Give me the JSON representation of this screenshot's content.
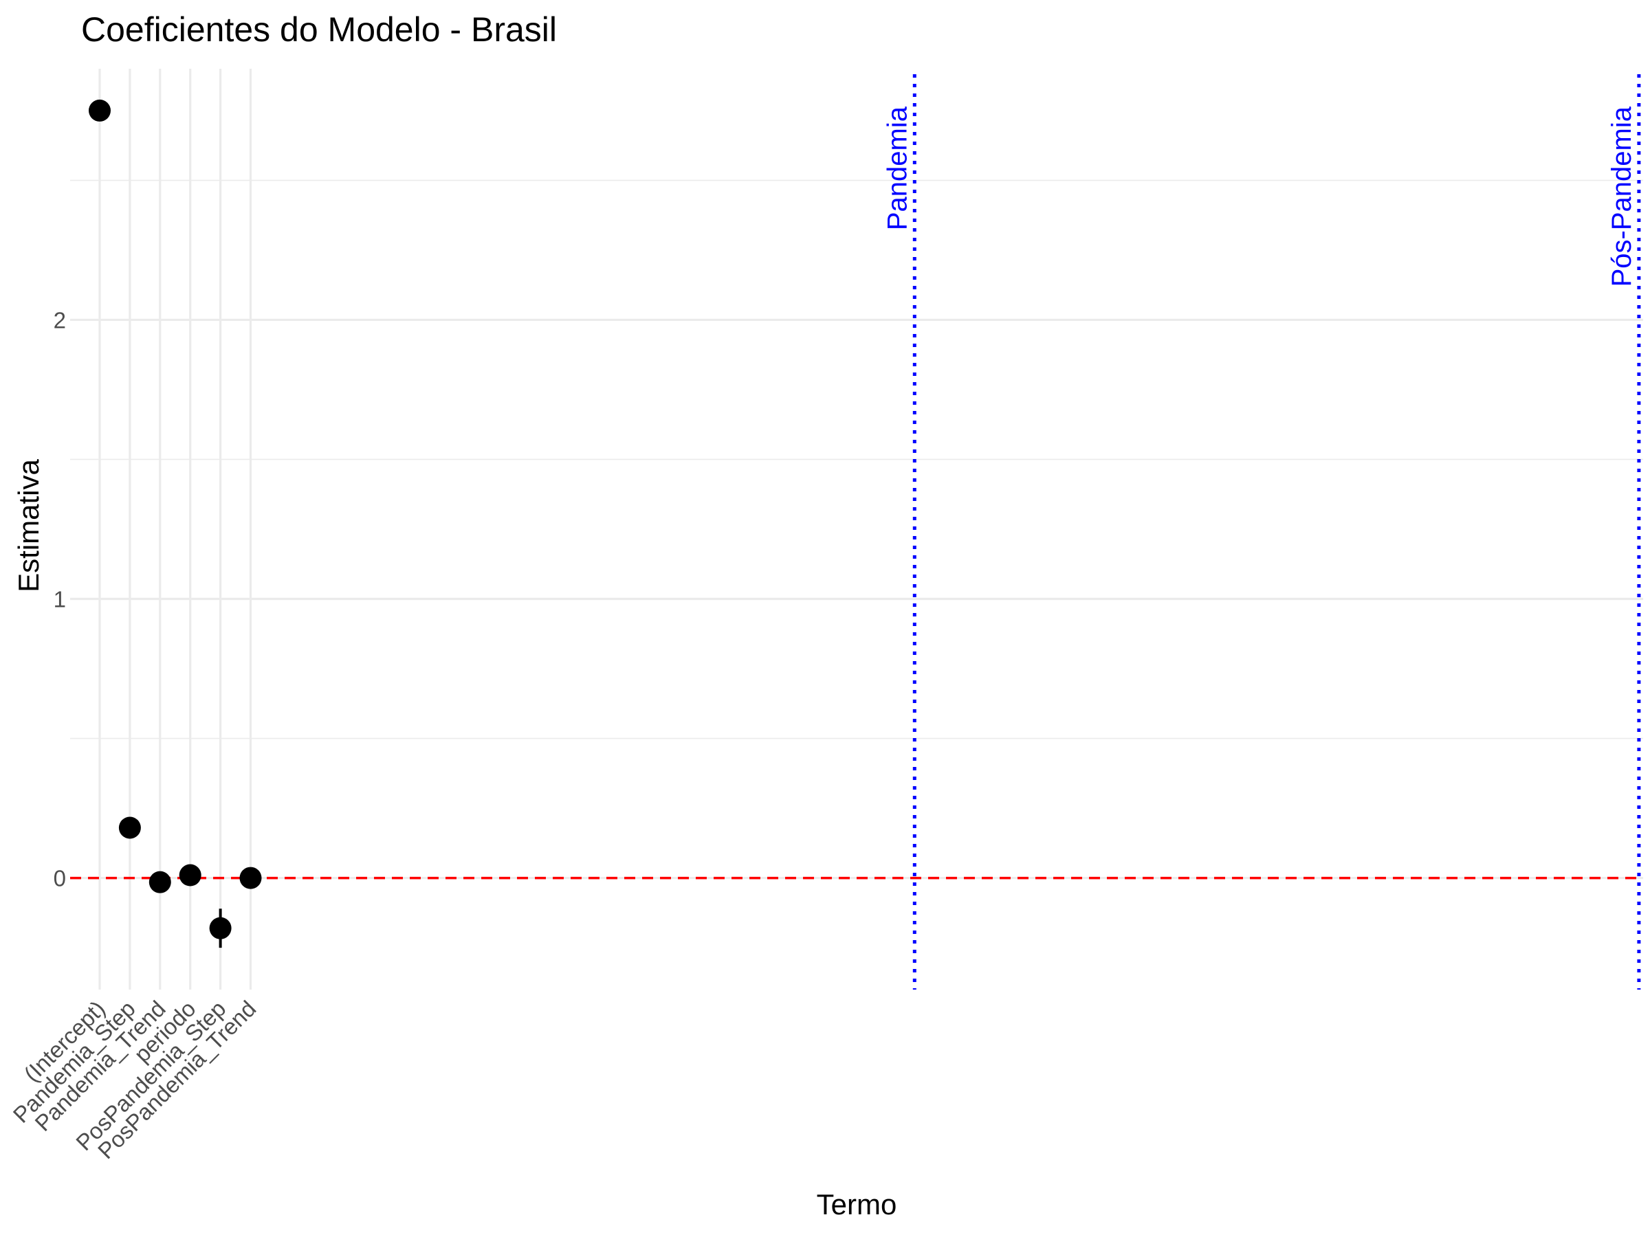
{
  "chart_data": {
    "type": "scatter",
    "title": "Coeficientes do Modelo - Brasil",
    "xlabel": "Termo",
    "ylabel": "Estimativa",
    "categories": [
      "(Intercept)",
      "Pandemia_Step",
      "Pandemia_Trend",
      "periodo",
      "PosPandemia_Step",
      "PosPandemia_Trend"
    ],
    "series": [
      {
        "values": [
          2.75,
          0.18,
          -0.015,
          0.01,
          -0.18,
          0.0
        ],
        "lower": [
          2.74,
          0.17,
          -0.03,
          0.0,
          -0.25,
          -0.01
        ],
        "upper": [
          2.76,
          0.19,
          0.0,
          0.02,
          -0.11,
          0.01
        ]
      }
    ],
    "ylim": [
      -0.4,
      2.9
    ],
    "xlim": [
      0.5,
      51.5
    ],
    "yticks": [
      0,
      1,
      2
    ],
    "ytick_labels": [
      "0",
      "1",
      "2"
    ],
    "reference_line": {
      "y": 0,
      "color": "#ff0000",
      "style": "dashed"
    },
    "vertical_lines": [
      {
        "x": 28,
        "label": "Pandemia",
        "color": "#0000ff",
        "style": "dotted"
      },
      {
        "x": 52,
        "label": "Pós-Pandemia",
        "color": "#0000ff",
        "style": "dotted"
      }
    ],
    "grid": true,
    "legend": "none",
    "point_color": "#000000"
  }
}
